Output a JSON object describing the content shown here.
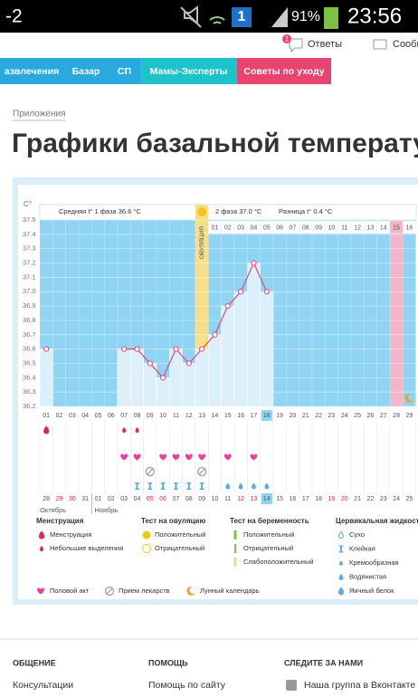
{
  "status_bar": {
    "temperature": "-2",
    "notifications": "1",
    "battery": "91%",
    "time": "23:56"
  },
  "header": {
    "answers_badge": "1",
    "answers": "Ответы",
    "messages": "Сообщ"
  },
  "nav": [
    "азвлечения",
    "Базар",
    "СП",
    "Мамы-Эксперты",
    "Советы по уходу"
  ],
  "breadcrumb": "Приложения",
  "title": "Графики базальной температуры",
  "chart_data": {
    "type": "line",
    "y_unit": "C°",
    "phase1_label": "Средняя t° 1 фаза 36.6 °C",
    "ovulation_label": "ОВУЛЯЦИЯ",
    "phase2_label": "2 фаза 37.0 °C",
    "difference_label": "Разница t° 0.4 °C",
    "cycle_days": [
      "01",
      "02",
      "03",
      "04",
      "05",
      "06",
      "07",
      "08",
      "09",
      "10",
      "11",
      "12",
      "13",
      "14",
      "15",
      "16",
      "17",
      "18",
      "19",
      "20",
      "21",
      "22",
      "23",
      "24",
      "25",
      "26",
      "27",
      "28",
      "29"
    ],
    "phase2_days": [
      "01",
      "02",
      "03",
      "04",
      "05",
      "06",
      "07",
      "08",
      "09",
      "10",
      "11",
      "12",
      "13",
      "14",
      "15",
      "16"
    ],
    "dates": [
      "28",
      "29",
      "30",
      "31",
      "01",
      "02",
      "03",
      "04",
      "05",
      "06",
      "07",
      "08",
      "09",
      "10",
      "11",
      "12",
      "13",
      "14",
      "15",
      "16",
      "17",
      "18",
      "19",
      "20",
      "21",
      "22",
      "23",
      "24",
      "25"
    ],
    "months": [
      "Октябрь",
      "Ноябрь"
    ],
    "ovulation_day": 13,
    "today": 18,
    "marked_day": 28,
    "weekend_days": [
      2,
      3,
      9,
      10,
      16,
      17,
      23,
      24
    ],
    "series": [
      {
        "color": "#e8457a",
        "values": [
          36.6,
          null,
          null,
          null,
          null,
          null,
          36.6,
          36.6,
          36.5,
          36.4,
          36.6,
          36.5,
          36.6,
          36.7,
          36.9,
          37.0,
          37.2,
          37.0,
          null,
          null,
          null,
          null,
          null,
          null,
          null,
          null,
          null,
          null,
          null
        ]
      }
    ],
    "ylim": [
      36.2,
      37.5
    ],
    "yticks": [
      36.2,
      36.3,
      36.4,
      36.5,
      36.6,
      36.7,
      36.8,
      36.9,
      {
        "value": 37.0,
        "label": "37.0"
      },
      37.1,
      37.2,
      37.3,
      37.4,
      37.5
    ],
    "grid": true,
    "markers": {
      "menstruation": [
        1
      ],
      "spotting": [
        7,
        8
      ],
      "intercourse": [
        7,
        8,
        10,
        11,
        12,
        13,
        15,
        17
      ],
      "medication": [
        9,
        13
      ],
      "sticky": [
        8,
        9,
        10,
        11,
        12,
        13
      ],
      "watery": [
        15,
        16,
        17,
        18
      ],
      "moon": [
        29
      ]
    },
    "legend_groups": [
      {
        "title": "Менструация",
        "items": [
          "Менструация",
          "Небольшие выделения"
        ]
      },
      {
        "title": "Тест на овуляцию",
        "items": [
          "Положительный",
          "Отрицательный"
        ]
      },
      {
        "title": "Тест на беременность",
        "items": [
          "Положительный",
          "Отрицательный",
          "Слабоположительный"
        ]
      },
      {
        "title": "Цервикальная жидкость",
        "items": [
          "Сухо",
          "Клейкая",
          "Кремообразная",
          "Водянистая",
          "Яичный белок"
        ]
      }
    ],
    "legend_bottom": [
      "Половой акт",
      "Прием лекарств",
      "Лунный календарь"
    ]
  },
  "footer": {
    "columns": [
      {
        "heading": "ОБЩЕНИЕ",
        "link": "Консультации"
      },
      {
        "heading": "ПОМОЩЬ",
        "link": "Помощь по сайту"
      },
      {
        "heading": "СЛЕДИТЕ ЗА НАМИ",
        "link": "Наша группа в Вконтакте"
      }
    ]
  }
}
